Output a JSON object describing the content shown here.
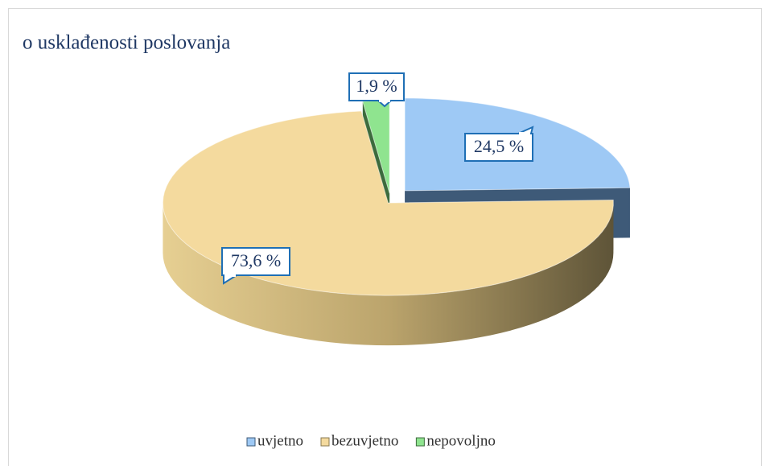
{
  "chart_data": {
    "type": "pie",
    "title": "o usklađenosti poslovanja",
    "categories": [
      "uvjetno",
      "bezuvjetno",
      "nepovoljno"
    ],
    "values": [
      24.5,
      73.6,
      1.9
    ],
    "value_labels": [
      "24,5 %",
      "73,6 %",
      "1,9 %"
    ],
    "colors": [
      "#9ec9f5",
      "#f4da9e",
      "#8fe48f"
    ],
    "legend": "bottom"
  }
}
